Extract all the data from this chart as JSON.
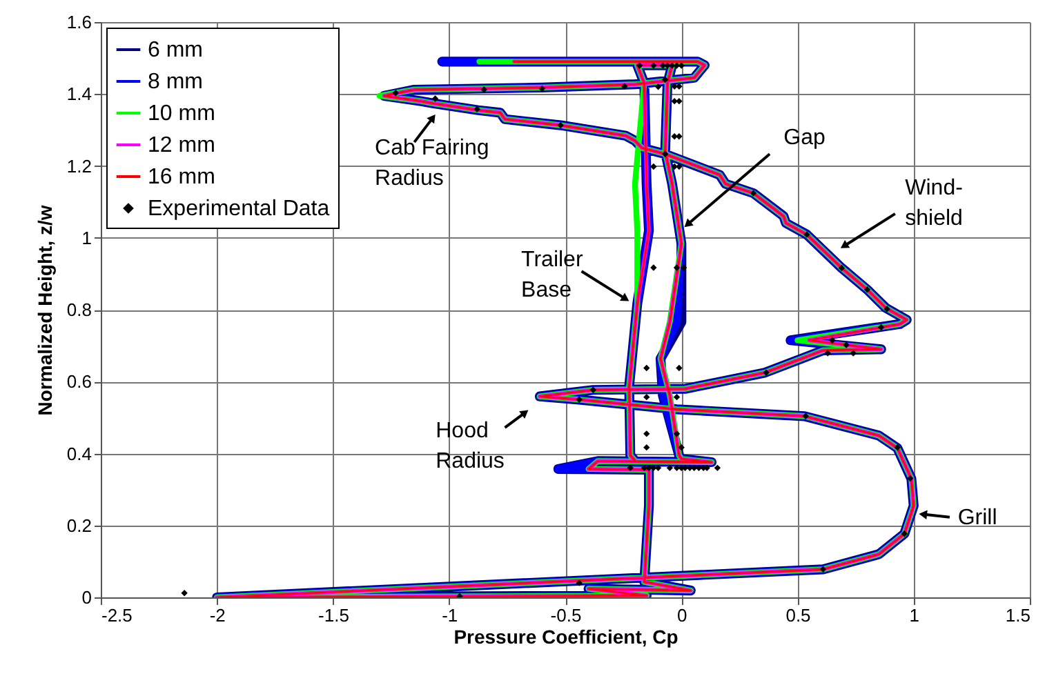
{
  "chart_data": {
    "type": "line",
    "xlabel": "Pressure Coefficient, Cp",
    "ylabel": "Normalized Height, z/w",
    "xlim": [
      -2.5,
      1.5
    ],
    "ylim": [
      0,
      1.6
    ],
    "xticks": [
      -2.5,
      -2,
      -1.5,
      -1,
      -0.5,
      0,
      0.5,
      1,
      1.5
    ],
    "yticks": [
      0,
      0.2,
      0.4,
      0.6,
      0.8,
      1,
      1.2,
      1.4,
      1.6
    ],
    "grid": true,
    "legend": "top left",
    "annotations": [
      {
        "text": "Cab Fairing Radius",
        "x": -1.07,
        "y": 1.334
      },
      {
        "text": "Gap",
        "x": 0.026,
        "y": 1.037
      },
      {
        "text": "Wind-shield",
        "x": 0.7,
        "y": 0.977
      },
      {
        "text": "Trailer Base",
        "x": -0.24,
        "y": 0.83
      },
      {
        "text": "Hood Radius",
        "x": -0.673,
        "y": 0.514
      },
      {
        "text": "Grill",
        "x": 1.04,
        "y": 0.231
      }
    ],
    "series": [
      {
        "name": "6 mm",
        "color": "#000080",
        "x": [
          -1.03,
          0.07,
          0.1,
          0.055,
          -0.2,
          -0.6,
          -1.15,
          -1.28,
          -1.12,
          -1.07,
          -0.875,
          -0.78,
          -0.76,
          -0.52,
          -0.24,
          -0.2,
          -0.17,
          -0.07,
          0.165,
          0.19,
          0.31,
          0.44,
          0.45,
          0.54,
          0.69,
          0.8,
          0.88,
          0.97,
          0.94,
          0.47,
          0.86,
          0.61,
          0.36,
          0.016,
          -0.38,
          -0.61,
          -0.44,
          -0.02,
          0.53,
          0.85,
          0.93,
          0.99,
          1.0,
          0.96,
          0.85,
          0.61,
          -2.0,
          -0.15,
          -0.4,
          0.04,
          -0.16,
          -0.14,
          -0.14,
          -0.53,
          -0.36,
          0.13,
          0.0,
          -0.01,
          -0.08,
          -0.09,
          0.0,
          0.0,
          -0.04,
          -0.07,
          -0.06,
          -0.04,
          -0.19,
          -0.16,
          -0.15,
          -0.14,
          -0.19,
          -0.225,
          -0.22,
          -0.2
        ],
        "values": [
          1.49,
          1.49,
          1.48,
          1.445,
          1.427,
          1.418,
          1.412,
          1.395,
          1.38,
          1.374,
          1.355,
          1.348,
          1.33,
          1.313,
          1.284,
          1.27,
          1.25,
          1.233,
          1.175,
          1.15,
          1.124,
          1.06,
          1.041,
          1.009,
          0.916,
          0.856,
          0.805,
          0.772,
          0.76,
          0.715,
          0.69,
          0.687,
          0.625,
          0.58,
          0.577,
          0.559,
          0.55,
          0.523,
          0.504,
          0.45,
          0.415,
          0.33,
          0.255,
          0.177,
          0.12,
          0.078,
          0.0,
          0.005,
          0.024,
          0.019,
          0.043,
          0.255,
          0.355,
          0.357,
          0.379,
          0.376,
          0.385,
          0.395,
          0.562,
          0.664,
          0.766,
          0.984,
          1.15,
          1.24,
          1.43,
          1.48,
          1.48,
          1.43,
          1.15,
          1.02,
          0.817,
          0.587,
          0.395,
          0.38
        ]
      },
      {
        "name": "8 mm",
        "color": "#0000ff",
        "x": [
          -1.03,
          0.07,
          0.1,
          0.055,
          -0.2,
          -0.6,
          -1.15,
          -1.28,
          -1.12,
          -1.07,
          -0.875,
          -0.78,
          -0.76,
          -0.52,
          -0.24,
          -0.2,
          -0.17,
          -0.07,
          0.165,
          0.19,
          0.31,
          0.44,
          0.45,
          0.54,
          0.69,
          0.8,
          0.88,
          0.97,
          0.94,
          0.47,
          0.86,
          0.61,
          0.36,
          0.016,
          -0.38,
          -0.61,
          -0.44,
          -0.02,
          0.53,
          0.85,
          0.93,
          0.99,
          1.0,
          0.96,
          0.85,
          0.61,
          -2.0,
          -0.15,
          -0.4,
          0.04,
          -0.16,
          -0.14,
          -0.14,
          -0.53,
          -0.36,
          0.13,
          0.0,
          -0.01,
          -0.08,
          -0.09,
          -0.02,
          0.0,
          -0.04,
          -0.07,
          -0.06,
          -0.04,
          -0.19,
          -0.16,
          -0.15,
          -0.14,
          -0.19,
          -0.225,
          -0.22,
          -0.2
        ],
        "values": [
          1.49,
          1.49,
          1.48,
          1.445,
          1.427,
          1.418,
          1.412,
          1.395,
          1.38,
          1.374,
          1.355,
          1.348,
          1.33,
          1.313,
          1.284,
          1.27,
          1.25,
          1.233,
          1.175,
          1.15,
          1.124,
          1.06,
          1.041,
          1.009,
          0.916,
          0.856,
          0.805,
          0.772,
          0.76,
          0.715,
          0.69,
          0.687,
          0.625,
          0.58,
          0.577,
          0.559,
          0.55,
          0.523,
          0.504,
          0.45,
          0.415,
          0.33,
          0.255,
          0.177,
          0.12,
          0.078,
          0.0,
          0.005,
          0.024,
          0.019,
          0.043,
          0.255,
          0.355,
          0.357,
          0.379,
          0.376,
          0.385,
          0.395,
          0.562,
          0.664,
          0.766,
          0.984,
          1.15,
          1.24,
          1.43,
          1.48,
          1.48,
          1.43,
          1.15,
          1.02,
          0.817,
          0.587,
          0.395,
          0.38
        ]
      },
      {
        "name": "10 mm",
        "color": "#00ff00",
        "x": [
          -0.87,
          0.07,
          0.1,
          0.055,
          -0.2,
          -0.6,
          -1.15,
          -1.3,
          -1.12,
          -1.07,
          -0.875,
          -0.78,
          -0.76,
          -0.52,
          -0.24,
          -0.2,
          -0.17,
          -0.07,
          0.165,
          0.19,
          0.31,
          0.44,
          0.45,
          0.54,
          0.69,
          0.8,
          0.88,
          0.97,
          0.94,
          0.5,
          0.86,
          0.61,
          0.36,
          0.016,
          -0.38,
          -0.61,
          -0.44,
          -0.02,
          0.53,
          0.85,
          0.93,
          0.99,
          1.0,
          0.96,
          0.85,
          0.61,
          -2.0,
          -0.15,
          -0.4,
          0.04,
          -0.16,
          -0.14,
          -0.14,
          -0.4,
          -0.36,
          0.13,
          0.0,
          -0.01,
          -0.05,
          -0.09,
          -0.05,
          0.0,
          -0.04,
          -0.07,
          -0.06,
          -0.04,
          -0.19,
          -0.16,
          -0.2,
          -0.19,
          -0.19,
          -0.225,
          -0.22,
          -0.2
        ],
        "values": [
          1.49,
          1.49,
          1.48,
          1.445,
          1.427,
          1.418,
          1.412,
          1.395,
          1.38,
          1.374,
          1.355,
          1.348,
          1.33,
          1.313,
          1.284,
          1.27,
          1.25,
          1.233,
          1.175,
          1.15,
          1.124,
          1.06,
          1.041,
          1.009,
          0.916,
          0.856,
          0.805,
          0.772,
          0.76,
          0.715,
          0.69,
          0.687,
          0.625,
          0.58,
          0.577,
          0.559,
          0.55,
          0.523,
          0.504,
          0.45,
          0.415,
          0.33,
          0.255,
          0.177,
          0.12,
          0.078,
          0.0,
          0.005,
          0.024,
          0.019,
          0.043,
          0.255,
          0.355,
          0.357,
          0.379,
          0.376,
          0.385,
          0.395,
          0.562,
          0.664,
          0.766,
          0.984,
          1.15,
          1.24,
          1.43,
          1.48,
          1.48,
          1.43,
          1.15,
          1.02,
          0.817,
          0.587,
          0.395,
          0.38
        ]
      },
      {
        "name": "12 mm",
        "color": "#ff00ff",
        "x": [
          -0.72,
          0.07,
          0.1,
          0.055,
          -0.2,
          -0.6,
          -1.15,
          -1.28,
          -1.12,
          -1.07,
          -0.875,
          -0.78,
          -0.76,
          -0.52,
          -0.24,
          -0.2,
          -0.17,
          -0.07,
          0.165,
          0.19,
          0.31,
          0.44,
          0.45,
          0.54,
          0.69,
          0.8,
          0.88,
          0.97,
          0.94,
          0.55,
          0.86,
          0.61,
          0.36,
          0.016,
          -0.38,
          -0.61,
          -0.44,
          -0.02,
          0.53,
          0.85,
          0.93,
          0.99,
          1.0,
          0.96,
          0.85,
          0.61,
          -2.0,
          -0.15,
          -0.4,
          0.04,
          -0.16,
          -0.14,
          -0.14,
          -0.4,
          -0.36,
          0.13,
          0.0,
          -0.01,
          -0.05,
          -0.09,
          -0.05,
          0.0,
          -0.04,
          -0.07,
          -0.06,
          -0.04,
          -0.19,
          -0.16,
          -0.15,
          -0.14,
          -0.19,
          -0.225,
          -0.22,
          -0.2
        ],
        "values": [
          1.49,
          1.49,
          1.48,
          1.445,
          1.427,
          1.418,
          1.412,
          1.395,
          1.38,
          1.374,
          1.355,
          1.348,
          1.33,
          1.313,
          1.284,
          1.27,
          1.25,
          1.233,
          1.175,
          1.15,
          1.124,
          1.06,
          1.041,
          1.009,
          0.916,
          0.856,
          0.805,
          0.772,
          0.76,
          0.715,
          0.69,
          0.687,
          0.625,
          0.58,
          0.577,
          0.559,
          0.55,
          0.523,
          0.504,
          0.45,
          0.415,
          0.33,
          0.255,
          0.177,
          0.12,
          0.078,
          0.0,
          0.005,
          0.024,
          0.019,
          0.043,
          0.255,
          0.355,
          0.357,
          0.379,
          0.376,
          0.385,
          0.395,
          0.562,
          0.664,
          0.766,
          0.984,
          1.15,
          1.24,
          1.43,
          1.48,
          1.48,
          1.43,
          1.15,
          1.02,
          0.817,
          0.587,
          0.395,
          0.38
        ]
      },
      {
        "name": "16 mm",
        "color": "#ff0000",
        "x": [
          -0.72,
          0.07,
          0.1,
          0.055,
          -0.2,
          -0.6,
          -1.15,
          -1.28,
          -1.12,
          -1.07,
          -0.875,
          -0.78,
          -0.76,
          -0.52,
          -0.24,
          -0.2,
          -0.17,
          -0.07,
          0.165,
          0.19,
          0.31,
          0.44,
          0.45,
          0.54,
          0.69,
          0.8,
          0.88,
          0.97,
          0.94,
          0.55,
          0.86,
          0.61,
          0.36,
          0.016,
          -0.38,
          -0.61,
          -0.44,
          -0.02,
          0.53,
          0.85,
          0.93,
          0.99,
          1.0,
          0.96,
          0.85,
          0.61,
          -2.0,
          -0.15,
          -0.4,
          0.04,
          -0.16,
          -0.14,
          -0.14,
          -0.4,
          -0.36,
          0.13,
          0.0,
          -0.01,
          -0.05,
          -0.09,
          -0.05,
          0.0,
          -0.04,
          -0.07,
          -0.06,
          -0.04,
          -0.19,
          -0.16,
          -0.15,
          -0.14,
          -0.19,
          -0.225,
          -0.22,
          -0.2
        ],
        "values": [
          1.49,
          1.49,
          1.48,
          1.445,
          1.427,
          1.418,
          1.412,
          1.395,
          1.38,
          1.374,
          1.355,
          1.348,
          1.33,
          1.313,
          1.284,
          1.27,
          1.25,
          1.233,
          1.175,
          1.15,
          1.124,
          1.06,
          1.041,
          1.009,
          0.916,
          0.856,
          0.805,
          0.772,
          0.76,
          0.715,
          0.69,
          0.687,
          0.625,
          0.58,
          0.577,
          0.559,
          0.55,
          0.523,
          0.504,
          0.45,
          0.415,
          0.33,
          0.255,
          0.177,
          0.12,
          0.078,
          0.0,
          0.005,
          0.024,
          0.019,
          0.043,
          0.255,
          0.355,
          0.357,
          0.379,
          0.376,
          0.385,
          0.395,
          0.562,
          0.664,
          0.766,
          0.984,
          1.15,
          1.24,
          1.43,
          1.48,
          1.48,
          1.43,
          1.15,
          1.02,
          0.817,
          0.587,
          0.395,
          0.38
        ]
      },
      {
        "name": "Experimental Data",
        "type": "scatter",
        "marker": "diamond",
        "color": "#000000",
        "x": [
          -2.14,
          -0.955,
          -0.44,
          0.61,
          0.96,
          0.985,
          0.93,
          0.535,
          -0.44,
          -0.38,
          0.365,
          0.63,
          0.74,
          0.71,
          0.65,
          0.86,
          0.885,
          0.8,
          0.69,
          0.54,
          0.31,
          -0.07,
          -0.12,
          -0.03,
          -0.01,
          -0.03,
          -0.01,
          -0.52,
          -0.88,
          -1.06,
          -1.23,
          -0.85,
          -0.6,
          -0.245,
          -0.1,
          -0.03,
          -0.01,
          -0.07,
          -0.03,
          -0.01,
          -0.18,
          -0.12,
          -0.08,
          -0.06,
          -0.04,
          -0.02,
          0.0,
          -0.12,
          -0.02,
          0.01,
          -0.15,
          -0.01,
          -0.15,
          -0.02,
          -0.15,
          -0.02,
          -0.15,
          0.0,
          -0.22,
          -0.16,
          -0.14,
          -0.12,
          -0.1,
          -0.05,
          -0.02,
          0.0,
          0.016,
          0.036,
          0.055,
          0.075,
          0.095,
          0.11,
          0.155
        ],
        "values": [
          0.012,
          0.003,
          0.04,
          0.078,
          0.177,
          0.331,
          0.417,
          0.504,
          0.55,
          0.577,
          0.625,
          0.679,
          0.679,
          0.702,
          0.715,
          0.751,
          0.802,
          0.856,
          0.916,
          1.009,
          1.124,
          1.233,
          1.198,
          1.198,
          1.198,
          1.282,
          1.282,
          1.313,
          1.358,
          1.387,
          1.403,
          1.412,
          1.415,
          1.421,
          1.42,
          1.421,
          1.421,
          1.44,
          1.38,
          1.38,
          1.479,
          1.479,
          1.479,
          1.479,
          1.479,
          1.479,
          1.479,
          0.917,
          0.917,
          0.917,
          0.638,
          0.638,
          0.557,
          0.557,
          0.455,
          0.455,
          0.417,
          0.417,
          0.36,
          0.36,
          0.36,
          0.36,
          0.36,
          0.36,
          0.36,
          0.36,
          0.36,
          0.36,
          0.36,
          0.36,
          0.36,
          0.36,
          0.36
        ]
      }
    ]
  }
}
